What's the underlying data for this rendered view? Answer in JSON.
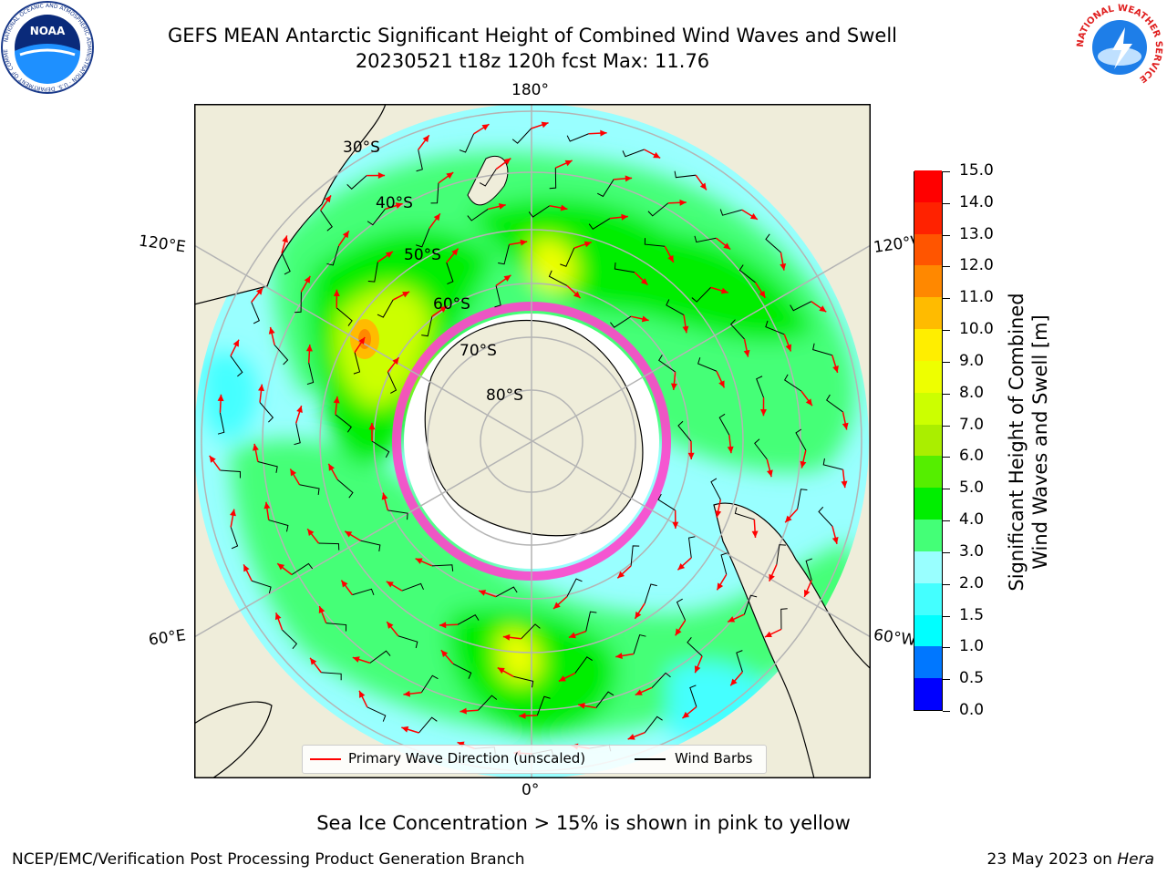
{
  "header": {
    "title_line1": "GEFS MEAN Antarctic Significant Height of Combined Wind Waves and Swell",
    "title_line2": "20230521 t18z 120h fcst   Max: 11.76"
  },
  "logos": {
    "noaa_text": "NOAA",
    "noaa_ring_text": "NATIONAL OCEANIC AND ATMOSPHERIC ADMINISTRATION · U.S. DEPARTMENT OF COMMERCE",
    "nws_ring_text": "NATIONAL WEATHER SERVICE"
  },
  "map": {
    "projection": "south polar stereographic",
    "longitude_labels": {
      "top": "180°",
      "bottom": "0°",
      "upper_left": "120°E",
      "upper_right": "120°W",
      "lower_left": "60°E",
      "lower_right": "60°W"
    },
    "latitude_labels": [
      "30°S",
      "40°S",
      "50°S",
      "60°S",
      "70°S",
      "80°S"
    ],
    "max_value": 11.76
  },
  "colorbar": {
    "levels": [
      "0.0",
      "0.5",
      "1.0",
      "1.5",
      "2.0",
      "3.0",
      "4.0",
      "5.0",
      "6.0",
      "7.0",
      "8.0",
      "9.0",
      "10.0",
      "11.0",
      "12.0",
      "13.0",
      "14.0",
      "15.0"
    ],
    "colors": [
      "#0000ff",
      "#0077ff",
      "#00ffff",
      "#44ffff",
      "#99ffff",
      "#44ff77",
      "#00ee00",
      "#55ee00",
      "#aaee00",
      "#ccff00",
      "#eeff00",
      "#ffee00",
      "#ffbb00",
      "#ff8800",
      "#ff5500",
      "#ff2200",
      "#ff0000"
    ],
    "title_line1": "Significant Height of Combined",
    "title_line2": "Wind Waves and Swell [m]"
  },
  "legend": {
    "wave_direction_label": "Primary Wave Direction (unscaled)",
    "wave_direction_color": "#ff0000",
    "wind_barbs_label": "Wind Barbs",
    "wind_barbs_color": "#000000"
  },
  "caption": "Sea Ice Concentration > 15% is shown in pink to yellow",
  "footer": {
    "left": "NCEP/EMC/Verification Post Processing Product Generation Branch",
    "right_prefix": "23 May 2023 on",
    "right_host": "Hera"
  }
}
